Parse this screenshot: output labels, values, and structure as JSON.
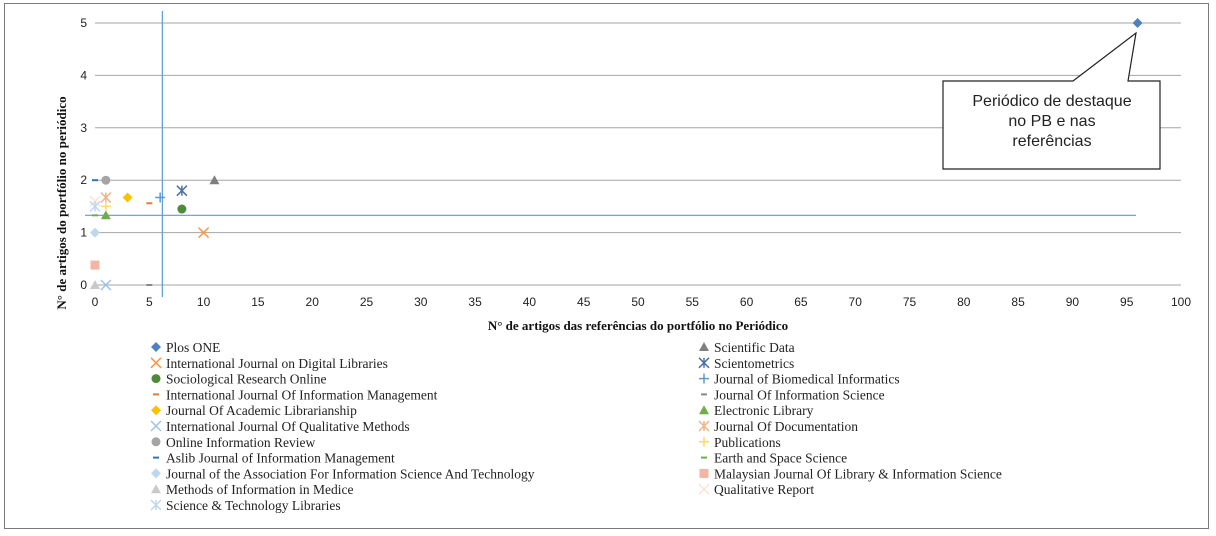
{
  "chart_data": {
    "type": "scatter",
    "xlabel": "N° de artigos das referências do portfólio no Periódico",
    "ylabel": "N° de artigos do portfólio no periódico",
    "xlim": [
      0,
      100
    ],
    "ylim": [
      0,
      5
    ],
    "x_ticks": [
      0,
      5,
      10,
      15,
      20,
      25,
      30,
      35,
      40,
      45,
      50,
      55,
      60,
      65,
      70,
      75,
      80,
      85,
      90,
      95,
      100
    ],
    "y_ticks": [
      0,
      1,
      2,
      3,
      4,
      5
    ],
    "grid": "horizontal",
    "reference_lines": {
      "x": 6.2,
      "y": 1.33
    },
    "legend_position": "bottom",
    "annotation": "Periódico de destaque no PB e nas referências",
    "series": [
      {
        "name": "Plos ONE",
        "marker": "diamond",
        "color": "#4f81bd",
        "points": [
          [
            96,
            5
          ]
        ]
      },
      {
        "name": "Scientific Data",
        "marker": "triangle",
        "color": "#7f7f7f",
        "points": [
          [
            11,
            2
          ]
        ]
      },
      {
        "name": "International Journal on Digital Libraries",
        "marker": "x",
        "color": "#f79646",
        "points": [
          [
            10,
            1
          ]
        ]
      },
      {
        "name": "Scientometrics",
        "marker": "star",
        "color": "#4f6fa8",
        "points": [
          [
            8,
            1.8
          ]
        ]
      },
      {
        "name": "Sociological Research Online",
        "marker": "circle",
        "color": "#4f8a3b",
        "points": [
          [
            8,
            1.45
          ]
        ]
      },
      {
        "name": "Journal of Biomedical Informatics",
        "marker": "plus",
        "color": "#5b9bd5",
        "points": [
          [
            6,
            1.67
          ]
        ]
      },
      {
        "name": "International Journal Of Information Management",
        "marker": "dash",
        "color": "#e07b39",
        "points": [
          [
            5,
            1.56
          ]
        ]
      },
      {
        "name": "Journal Of Information Science",
        "marker": "dash",
        "color": "#8a8a8a",
        "points": [
          [
            5,
            0
          ]
        ]
      },
      {
        "name": "Journal Of Academic Librarianship",
        "marker": "diamond",
        "color": "#ffc000",
        "points": [
          [
            3,
            1.67
          ]
        ]
      },
      {
        "name": "Electronic Library",
        "marker": "triangle",
        "color": "#70ad47",
        "points": [
          [
            1,
            1.33
          ]
        ]
      },
      {
        "name": "International Journal Of Qualitative Methods",
        "marker": "x",
        "color": "#9dc3e6",
        "points": [
          [
            1,
            0
          ]
        ]
      },
      {
        "name": "Journal Of Documentation",
        "marker": "star",
        "color": "#f4b183",
        "points": [
          [
            1,
            1.67
          ]
        ]
      },
      {
        "name": "Online Information Review",
        "marker": "circle",
        "color": "#a5a5a5",
        "points": [
          [
            1,
            2
          ]
        ]
      },
      {
        "name": "Publications",
        "marker": "plus",
        "color": "#ffd966",
        "points": [
          [
            1,
            1.5
          ]
        ]
      },
      {
        "name": "Aslib Journal of Information Management",
        "marker": "dash",
        "color": "#2e75b6",
        "points": [
          [
            0,
            2
          ]
        ]
      },
      {
        "name": "Earth and Space Science",
        "marker": "dash",
        "color": "#70ad47",
        "points": [
          [
            0,
            1.33
          ]
        ]
      },
      {
        "name": "Journal of the Association For Information Science And Technology",
        "marker": "diamond",
        "color": "#bdd7ee",
        "points": [
          [
            0,
            1
          ]
        ]
      },
      {
        "name": "Malaysian Journal Of Library & Information Science",
        "marker": "square",
        "color": "#f4b6a4",
        "points": [
          [
            0,
            0.38
          ]
        ]
      },
      {
        "name": "Methods of Information in Medice",
        "marker": "triangle",
        "color": "#c9c9c9",
        "points": [
          [
            0,
            0
          ]
        ]
      },
      {
        "name": "Qualitative Report",
        "marker": "x",
        "color": "#fce4d6",
        "points": [
          [
            0,
            1.6
          ]
        ]
      },
      {
        "name": "Science & Technology Libraries",
        "marker": "star",
        "color": "#bdd7ee",
        "points": [
          [
            0,
            1.5
          ]
        ]
      }
    ]
  }
}
